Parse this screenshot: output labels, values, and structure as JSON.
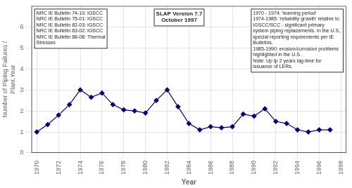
{
  "chart_data": {
    "type": "line",
    "x": [
      1970,
      1971,
      1972,
      1973,
      1974,
      1975,
      1976,
      1977,
      1978,
      1979,
      1980,
      1981,
      1982,
      1983,
      1984,
      1985,
      1986,
      1987,
      1988,
      1989,
      1990,
      1991,
      1992,
      1993,
      1994,
      1995,
      1996,
      1997
    ],
    "values": [
      1.0,
      1.35,
      1.8,
      2.3,
      3.0,
      2.65,
      2.85,
      2.3,
      2.05,
      2.0,
      1.9,
      2.5,
      3.0,
      2.2,
      1.4,
      1.1,
      1.25,
      1.2,
      1.25,
      1.85,
      1.75,
      2.1,
      1.5,
      1.4,
      1.1,
      1.0,
      1.1,
      1.1
    ],
    "color": "#000080",
    "marker": "diamond",
    "x_label": "Year",
    "y_label": "Number of Piping Failures /\nPlant.Year",
    "xlim": [
      1969.5,
      1998.5
    ],
    "xticks": [
      1970,
      1972,
      1974,
      1976,
      1978,
      1980,
      1982,
      1984,
      1986,
      1988,
      1990,
      1992,
      1994,
      1996,
      1998
    ],
    "ylim": [
      0,
      7
    ],
    "yticks": [
      0,
      1,
      2,
      3,
      4,
      5,
      6
    ],
    "grid": true,
    "annotations": [
      "NRC IE Bulletin 74-10: IGSCC\nNRC IE Bulletin 75-01: IGSCC\nNRC IE Bulletin 82-03: IGSCC\nNRC IE Bulletin 83-02: IGSCC\nNRC IE Bulletin 88-08: Thermal\nStresses",
      "1970 - 1974: 'learning period'\n1974-1985: 'reliability growth' relative to\nIGSCC/SCC - significant primary\nsystem piping replacements. In the U.S.,\nspecial reporting requirements per IE\nBulletins.\n1985-1990: erosion/corrosion problems\nhighlighted in the U.S.\nNote: Up tp 2 years lag-time for\nissuance of LERs.",
      "SLAP Version 7.7\nOctober 1997"
    ]
  }
}
